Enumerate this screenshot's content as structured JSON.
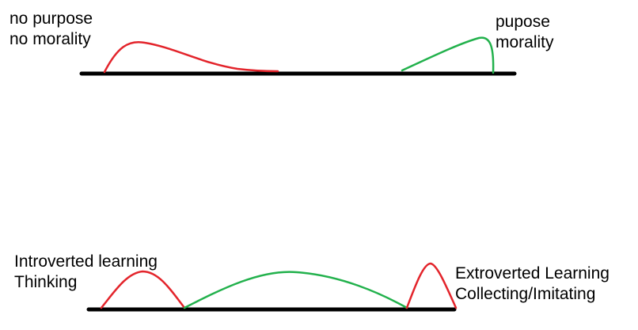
{
  "colors": {
    "baseline": "#000000",
    "negative_curve": "#e3242b",
    "positive_curve": "#22b14c",
    "text": "#000000",
    "background": "#ffffff"
  },
  "top_diagram": {
    "left_label": [
      "no purpose",
      "no morality"
    ],
    "right_label": [
      "pupose",
      "morality"
    ]
  },
  "bottom_diagram": {
    "left_label": [
      "Introverted learning",
      "Thinking"
    ],
    "right_label": [
      "Extroverted Learning",
      "Collecting/Imitating"
    ]
  }
}
